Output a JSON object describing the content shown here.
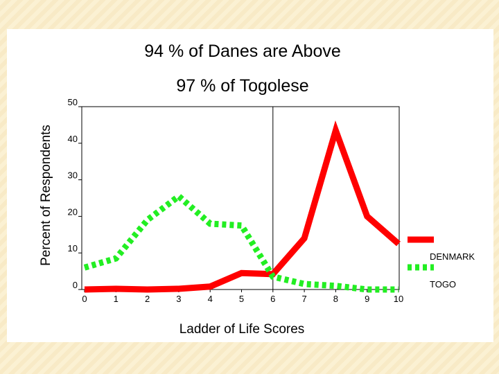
{
  "chart_data": {
    "type": "line",
    "title_line1": "94 % of Danes are Above",
    "title_line2": "97 % of Togolese",
    "xlabel": "Ladder of Life Scores",
    "ylabel": "Percent of Respondents",
    "x": [
      0,
      1,
      2,
      3,
      4,
      5,
      6,
      7,
      8,
      9,
      10
    ],
    "xlim": [
      0,
      10
    ],
    "ylim": [
      0,
      50
    ],
    "xticks": [
      "0",
      "1",
      "2",
      "3",
      "4",
      "5",
      "6",
      "7",
      "8",
      "9",
      "10"
    ],
    "yticks": [
      "0",
      "10",
      "20",
      "30",
      "40",
      "50"
    ],
    "reference_line_x": 6,
    "grid": false,
    "legend_position": "right",
    "series": [
      {
        "name": "DENMARK",
        "color": "#ff0000",
        "style": "solid",
        "values": [
          0,
          0.2,
          0,
          0.2,
          0.8,
          4.5,
          4.2,
          14,
          43.5,
          20,
          12.5
        ]
      },
      {
        "name": "TOGO",
        "color": "#22ee22",
        "style": "dotted",
        "values": [
          6,
          8.5,
          19,
          25.5,
          18,
          17.5,
          3.5,
          1.5,
          1,
          0,
          0
        ]
      }
    ]
  }
}
